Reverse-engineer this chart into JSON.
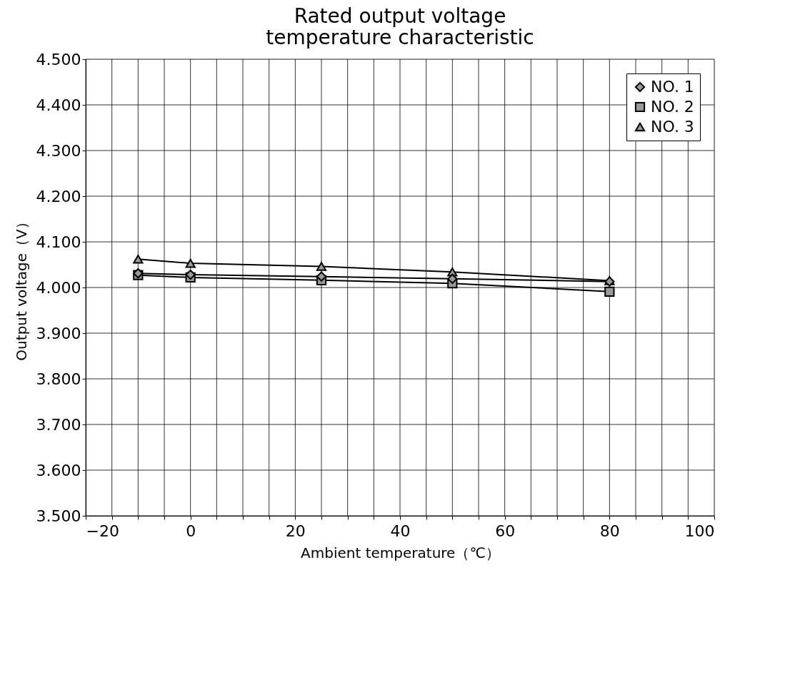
{
  "chart_data": {
    "type": "line",
    "title": "Rated output voltage temperature characteristic",
    "xlabel": "Ambient temperature（℃）",
    "ylabel": "Output voltage（V）",
    "x": [
      -10,
      0,
      25,
      50,
      80
    ],
    "series": [
      {
        "name": "NO. 1",
        "color": "#000000",
        "marker": "diamond",
        "values": [
          4.031,
          4.028,
          4.024,
          4.019,
          4.013
        ]
      },
      {
        "name": "NO. 2",
        "color": "#000000",
        "marker": "square",
        "values": [
          4.027,
          4.022,
          4.016,
          4.009,
          3.991
        ]
      },
      {
        "name": "NO. 3",
        "color": "#000000",
        "marker": "triangle",
        "values": [
          4.062,
          4.053,
          4.046,
          4.034,
          4.015
        ]
      }
    ],
    "xlim": [
      -20,
      100
    ],
    "xticks": [
      {
        "value": -20,
        "label": "−20"
      },
      {
        "value": -15,
        "label": null
      },
      {
        "value": -10,
        "label": null
      },
      {
        "value": -5,
        "label": null
      },
      0,
      {
        "value": 5,
        "label": null
      },
      {
        "value": 10,
        "label": null
      },
      {
        "value": 15,
        "label": null
      },
      20,
      {
        "value": 25,
        "label": null
      },
      {
        "value": 30,
        "label": null
      },
      {
        "value": 35,
        "label": null
      },
      40,
      {
        "value": 45,
        "label": null
      },
      {
        "value": 50,
        "label": null
      },
      {
        "value": 55,
        "label": null
      },
      60,
      {
        "value": 65,
        "label": null
      },
      {
        "value": 70,
        "label": null
      },
      {
        "value": 75,
        "label": null
      },
      80,
      {
        "value": 85,
        "label": null
      },
      {
        "value": 90,
        "label": null
      },
      {
        "value": 95,
        "label": null
      },
      100
    ],
    "ylim": [
      3.5,
      4.5
    ],
    "yticks": [
      {
        "value": 3.5,
        "label": "3.500"
      },
      {
        "value": 3.6,
        "label": "3.600"
      },
      {
        "value": 3.7,
        "label": "3.700"
      },
      {
        "value": 3.8,
        "label": "3.800"
      },
      {
        "value": 3.9,
        "label": "3.900"
      },
      {
        "value": 4.0,
        "label": "4.000"
      },
      {
        "value": 4.1,
        "label": "4.100"
      },
      {
        "value": 4.2,
        "label": "4.200"
      },
      {
        "value": 4.3,
        "label": "4.300"
      },
      {
        "value": 4.4,
        "label": "4.400"
      },
      {
        "value": 4.5,
        "label": "4.500"
      }
    ],
    "grid": true,
    "legend": "top right",
    "line_style": "solid"
  }
}
